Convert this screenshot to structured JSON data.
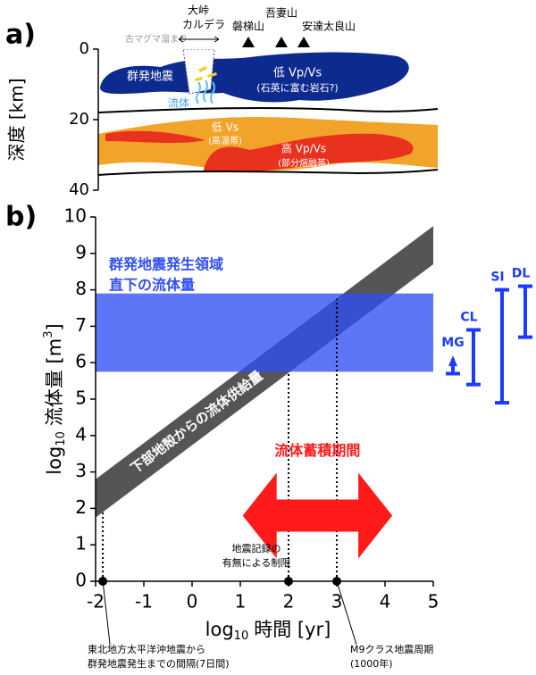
{
  "panel_a": {
    "label": "a)",
    "y_label": "深度 [km]",
    "ylim": [
      0,
      40
    ],
    "yticks": [
      0,
      20,
      40
    ],
    "old_magma": "古マグマ溜まり",
    "caldera": [
      "大峠",
      "カルデラ"
    ],
    "volcanoes": [
      "磐梯山",
      "吾妻山",
      "安達太良山"
    ],
    "swarm": "群発地震",
    "fluid": "流体",
    "low_vpvs": [
      "低 Vp/Vs",
      "(石英に富む岩石?)"
    ],
    "low_vs": [
      "低 Vs",
      "(高温帯)"
    ],
    "high_vpvs": [
      "高 Vp/Vs",
      "(部分熔融帯)"
    ]
  },
  "chart_data": {
    "type": "band",
    "label": "b)",
    "x_label": {
      "text": "log",
      "sub": "10",
      "main": "時間 [yr]"
    },
    "y_label": {
      "text": "log",
      "sub": "10",
      "main": "流体量 [m",
      "sup": "3",
      "end": "]"
    },
    "xlim": [
      -2,
      5
    ],
    "xticks": [
      -2,
      -1,
      0,
      1,
      2,
      3,
      4,
      5
    ],
    "ylim": [
      0,
      10
    ],
    "yticks": [
      0,
      1,
      2,
      3,
      4,
      5,
      6,
      7,
      8,
      9,
      10
    ],
    "horizontal_band": {
      "label": [
        "群発地震発生領域",
        "直下の流体量"
      ],
      "color": "#2f4ff5",
      "values": [
        5.75,
        7.9
      ]
    },
    "diagonal_band": {
      "label": "下部地殻からの流体供給量",
      "color": "#555555",
      "x": [
        -2,
        5
      ],
      "lower": [
        1.75,
        8.7
      ],
      "upper": [
        2.8,
        9.75
      ]
    },
    "markers": {
      "x": [
        -1.85,
        2,
        3
      ],
      "y": [
        1.9,
        5.75,
        7.75
      ]
    },
    "arrow": {
      "label": "流体蓄積期間",
      "x": [
        1.05,
        4.15
      ],
      "y": 1.8,
      "color": "#ff1a1a"
    },
    "record_note": [
      "地震記録の",
      "有無による制限"
    ],
    "note_left": [
      "東北地方太平洋沖地震から",
      "群発地震発生までの間隔(7日間)"
    ],
    "note_right": [
      "M9クラス地震周期",
      "(1000年)"
    ],
    "ranges": {
      "color": "#1a3cff",
      "series": [
        {
          "name": "MG",
          "values": [
            5.7,
            6.1
          ]
        },
        {
          "name": "CL",
          "values": [
            5.4,
            6.9
          ]
        },
        {
          "name": "SI",
          "values": [
            4.9,
            8.0
          ]
        },
        {
          "name": "DL",
          "values": [
            6.7,
            8.1
          ]
        }
      ]
    }
  }
}
